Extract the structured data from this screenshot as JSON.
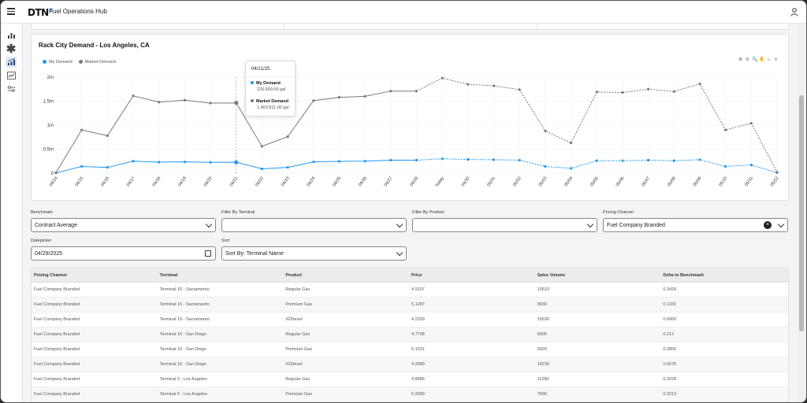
{
  "app": {
    "logo": "DTN",
    "title": "Fuel Operations Hub"
  },
  "icons": [
    "menu-icon",
    "user-icon",
    "bar-chart-icon",
    "asterisk-icon",
    "demand-chart-icon",
    "trend-chart-icon",
    "sliders-icon"
  ],
  "chart_card": {
    "title": "Rack City Demand - Los Angeles, CA"
  },
  "chart_data": {
    "type": "line",
    "title": "Rack City Demand - Los Angeles, CA",
    "categories": [
      "04/14",
      "04/15",
      "04/16",
      "04/17",
      "04/18",
      "04/19",
      "04/20",
      "04/21",
      "04/22",
      "04/23",
      "04/24",
      "04/25",
      "04/26",
      "04/27",
      "04/28",
      "Today",
      "04/30",
      "05/01",
      "05/02",
      "05/03",
      "05/04",
      "05/05",
      "05/06",
      "05/07",
      "05/08",
      "05/09",
      "05/10",
      "05/11",
      "05/12"
    ],
    "forecast_start_index": 14,
    "y_ticks": [
      "0",
      "0.5m",
      "1m",
      "1.5m",
      "2m"
    ],
    "ylim": [
      0,
      2000000
    ],
    "legend_position": "top-left",
    "series": [
      {
        "name": "My Demand",
        "color": "#2196f3",
        "values": [
          5000,
          140000,
          120000,
          250000,
          230000,
          235000,
          225000,
          226659,
          90000,
          120000,
          235000,
          245000,
          250000,
          270000,
          270000,
          300000,
          285000,
          280000,
          270000,
          140000,
          100000,
          260000,
          260000,
          270000,
          260000,
          280000,
          140000,
          170000,
          10000
        ]
      },
      {
        "name": "Market Demand",
        "color": "#7a7a7a",
        "values": [
          10000,
          900000,
          780000,
          1610000,
          1480000,
          1520000,
          1460000,
          1463811,
          560000,
          760000,
          1510000,
          1580000,
          1600000,
          1710000,
          1710000,
          1980000,
          1850000,
          1820000,
          1740000,
          880000,
          630000,
          1690000,
          1680000,
          1750000,
          1700000,
          1860000,
          900000,
          1040000,
          20000
        ]
      }
    ]
  },
  "tooltip": {
    "date": "04/21/25",
    "rows": [
      {
        "label": "My Demand",
        "value": "226,659.00 gal"
      },
      {
        "label": "Market Demand",
        "value": "1,463,811.00 gal"
      }
    ]
  },
  "filters": {
    "benchmark": {
      "label": "Benchmark",
      "value": "Contract Average"
    },
    "terminal": {
      "label": "Filter By Terminal",
      "value": ""
    },
    "product": {
      "label": "Filter By Product",
      "value": ""
    },
    "channel": {
      "label": "Pricing Channel",
      "value": "Fuel Company Branded"
    },
    "date": {
      "label": "Datepicker",
      "value": "04/29/2025"
    },
    "sort": {
      "label": "Sort",
      "value": "Sort By: Terminal Name"
    }
  },
  "table": {
    "headers": [
      "Pricing Channel",
      "Terminal",
      "Product",
      "Price",
      "Sales Volume",
      "Delta to Benchmark"
    ],
    "rows": [
      [
        "Fuel Company Branded",
        "Terminal 15 - Sacramento",
        "Regular Gas",
        "4.9107",
        "10610",
        "0.3429"
      ],
      [
        "Fuel Company Branded",
        "Terminal 15 - Sacramento",
        "Premium Gas",
        "5.1287",
        "8930",
        "0.1331"
      ],
      [
        "Fuel Company Branded",
        "Terminal 15 - Sacramento",
        "#2Diesel",
        "4.2309",
        "15630",
        "0.6450"
      ],
      [
        "Fuel Company Branded",
        "Terminal 16 - San Diego",
        "Regular Gas",
        "4.7798",
        "6905",
        "0.212"
      ],
      [
        "Fuel Company Branded",
        "Terminal 16 - San Diego",
        "Premium Gas",
        "5.1931",
        "6920",
        "0.2855"
      ],
      [
        "Fuel Company Branded",
        "Terminal 16 - San Diego",
        "#2Diesel",
        "4.2089",
        "16230",
        "0.6676"
      ],
      [
        "Fuel Company Branded",
        "Terminal 5 - Los Angeles",
        "Regular Gas",
        "4.8986",
        "11280",
        "0.3228"
      ],
      [
        "Fuel Company Branded",
        "Terminal 5 - Los Angeles",
        "Premium Gas",
        "5.2089",
        "7590",
        "0.2213"
      ]
    ]
  }
}
